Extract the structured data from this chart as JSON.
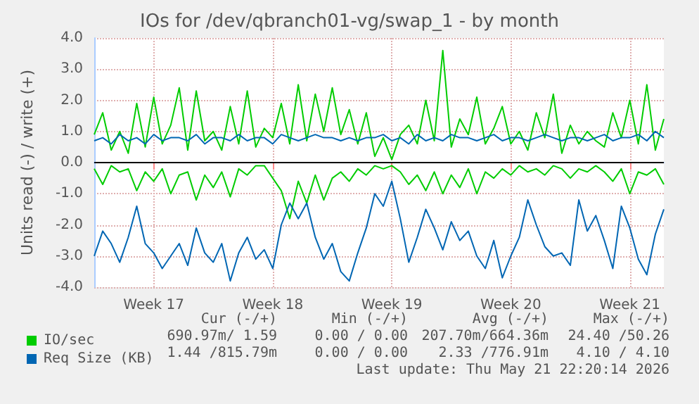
{
  "chart_data": {
    "type": "line",
    "title": "IOs for /dev/qbranch01-vg/swap_1 - by month",
    "ylabel": "Units read (-) / write (+)",
    "categories": [
      null,
      null,
      null,
      null,
      null,
      null,
      null,
      "Week 17",
      null,
      null,
      null,
      null,
      null,
      null,
      null,
      null,
      null,
      null,
      null,
      null,
      null,
      "Week 18",
      null,
      null,
      null,
      null,
      null,
      null,
      null,
      null,
      null,
      null,
      null,
      null,
      null,
      "Week 19",
      null,
      null,
      null,
      null,
      null,
      null,
      null,
      null,
      null,
      null,
      null,
      null,
      null,
      "Week 20",
      null,
      null,
      null,
      null,
      null,
      null,
      null,
      null,
      null,
      null,
      null,
      null,
      null,
      "Week 21",
      null,
      null,
      null,
      null
    ],
    "series": [
      {
        "name": "IO/sec",
        "color": "#00cc00",
        "values": [
          0.9,
          1.6,
          0.4,
          1.0,
          0.3,
          1.9,
          0.5,
          2.1,
          0.6,
          1.2,
          2.4,
          0.4,
          2.3,
          0.7,
          1.0,
          0.4,
          1.8,
          0.6,
          2.3,
          0.5,
          1.1,
          0.8,
          1.9,
          0.6,
          2.5,
          0.7,
          2.2,
          1.0,
          2.4,
          0.9,
          1.7,
          0.6,
          1.6,
          0.2,
          0.8,
          0.1,
          0.9,
          1.2,
          0.6,
          2.0,
          0.7,
          3.6,
          0.5,
          1.4,
          0.9,
          2.1,
          0.6,
          1.1,
          1.8,
          0.6,
          1.0,
          0.4,
          1.6,
          0.8,
          2.2,
          0.3,
          1.2,
          0.6,
          1.0,
          0.7,
          0.5,
          1.6,
          0.8,
          2.0,
          0.6,
          2.5,
          0.4,
          1.4
        ]
      },
      {
        "color": "#00cc00",
        "values": [
          -0.2,
          -0.7,
          -0.1,
          -0.3,
          -0.2,
          -0.9,
          -0.3,
          -0.6,
          -0.2,
          -1.0,
          -0.4,
          -0.3,
          -1.2,
          -0.4,
          -0.8,
          -0.3,
          -1.1,
          -0.2,
          -0.4,
          -0.1,
          -0.1,
          -0.5,
          -0.9,
          -1.8,
          -0.6,
          -1.3,
          -0.4,
          -1.2,
          -0.5,
          -0.3,
          -0.6,
          -0.2,
          -0.4,
          -0.1,
          -0.2,
          -0.1,
          -0.3,
          -0.7,
          -0.4,
          -0.9,
          -0.3,
          -1.0,
          -0.4,
          -0.8,
          -0.2,
          -1.0,
          -0.3,
          -0.5,
          -0.2,
          -0.4,
          -0.1,
          -0.3,
          -0.2,
          -0.4,
          -0.1,
          -0.2,
          -0.5,
          -0.2,
          -0.3,
          -0.1,
          -0.3,
          -0.6,
          -0.2,
          -1.0,
          -0.3,
          -0.4,
          -0.2,
          -0.7
        ]
      },
      {
        "name": "Req Size (KB)",
        "color": "#0066b3",
        "values": [
          0.7,
          0.8,
          0.6,
          0.9,
          0.7,
          0.8,
          0.6,
          0.9,
          0.7,
          0.8,
          0.8,
          0.7,
          0.9,
          0.6,
          0.8,
          0.8,
          0.7,
          0.9,
          0.7,
          0.8,
          0.8,
          0.6,
          0.9,
          0.8,
          0.7,
          0.8,
          0.9,
          0.8,
          0.8,
          0.7,
          0.8,
          0.7,
          0.8,
          0.8,
          0.9,
          0.7,
          0.8,
          0.6,
          0.9,
          0.7,
          0.8,
          0.7,
          0.9,
          0.8,
          0.8,
          0.7,
          0.8,
          0.9,
          0.7,
          0.8,
          0.8,
          0.7,
          0.8,
          0.9,
          0.8,
          0.7,
          0.8,
          0.8,
          0.7,
          0.8,
          0.9,
          0.7,
          0.8,
          0.8,
          0.9,
          0.7,
          1.0,
          0.8
        ]
      },
      {
        "color": "#0066b3",
        "values": [
          -3.0,
          -2.2,
          -2.6,
          -3.2,
          -2.4,
          -1.4,
          -2.6,
          -2.9,
          -3.4,
          -3.0,
          -2.6,
          -3.3,
          -2.1,
          -2.9,
          -3.2,
          -2.6,
          -3.8,
          -2.9,
          -2.4,
          -3.1,
          -2.8,
          -3.4,
          -2.0,
          -1.3,
          -1.8,
          -1.3,
          -2.4,
          -3.1,
          -2.6,
          -3.5,
          -3.8,
          -2.9,
          -2.1,
          -1.0,
          -1.4,
          -0.6,
          -1.8,
          -3.2,
          -2.4,
          -1.5,
          -2.1,
          -2.8,
          -1.9,
          -2.5,
          -2.2,
          -3.0,
          -3.4,
          -2.5,
          -3.7,
          -3.0,
          -2.4,
          -1.2,
          -2.0,
          -2.7,
          -3.0,
          -2.9,
          -3.3,
          -1.2,
          -2.2,
          -1.7,
          -2.5,
          -3.4,
          -1.4,
          -2.1,
          -3.1,
          -3.6,
          -2.3,
          -1.5
        ]
      }
    ],
    "ylim": [
      -4,
      4
    ],
    "yticks": [
      {
        "value": -4,
        "label": "-4.0"
      },
      {
        "value": -3,
        "label": "-3.0"
      },
      {
        "value": -2,
        "label": "-2.0"
      },
      {
        "value": -1,
        "label": "-1.0"
      },
      {
        "value": 0,
        "label": "0.0"
      },
      {
        "value": 1,
        "label": "1.0"
      },
      {
        "value": 2,
        "label": "2.0"
      },
      {
        "value": 3,
        "label": "3.0"
      },
      {
        "value": 4,
        "label": "4.0"
      }
    ],
    "ref_lines": [
      {
        "axis": "y",
        "value": 0,
        "color": "#000000"
      }
    ],
    "grid": true,
    "legend": "bottom left",
    "line_style": "solid",
    "marker": "none",
    "annotations": [
      "Cur (-/+)",
      "Min (-/+)",
      "Avg (-/+)",
      "Max (-/+)",
      "690.97m/ 1.59",
      "0.00 / 0.00",
      "207.70m/664.36m",
      "24.40 /50.26",
      "1.44 /815.79m",
      "0.00 / 0.00",
      "2.33 /776.91m",
      "4.10 / 4.10",
      "Last update: Thu May 21 22:20:14 2026"
    ]
  }
}
